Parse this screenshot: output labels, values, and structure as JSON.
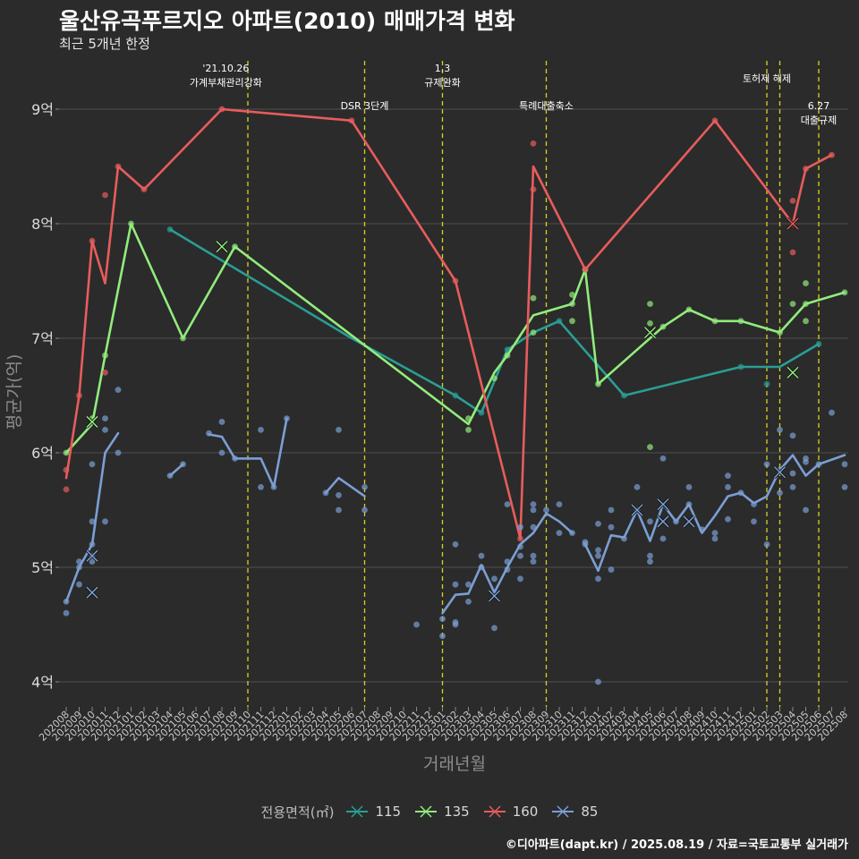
{
  "title": "울산유곡푸르지오 아파트(2010) 매매가격 변화",
  "subtitle": "최근 5개년 한정",
  "caption": "©디아파트(dapt.kr) / 2025.08.19 / 자료=국토교통부 실거래가",
  "colors": {
    "background": "#2b2b2b",
    "grid": "#4f4f4f",
    "vline": "#d4d423",
    "text": "#ffffff",
    "axis_text": "#c8c8c8"
  },
  "chart_data": {
    "type": "line",
    "xlabel": "거래년월",
    "ylabel": "평균가(억)",
    "ylim": [
      3.8,
      9.6
    ],
    "yticks": [
      {
        "value": 4,
        "label": "4억"
      },
      {
        "value": 5,
        "label": "5억"
      },
      {
        "value": 6,
        "label": "6억"
      },
      {
        "value": 7,
        "label": "7억"
      },
      {
        "value": 8,
        "label": "8억"
      },
      {
        "value": 9,
        "label": "9억"
      }
    ],
    "categories": [
      "202008",
      "202009",
      "202010",
      "202011",
      "202012",
      "202101",
      "202102",
      "202103",
      "202104",
      "202105",
      "202106",
      "202107",
      "202108",
      "202109",
      "202110",
      "202111",
      "202112",
      "202201",
      "202202",
      "202203",
      "202204",
      "202205",
      "202206",
      "202207",
      "202208",
      "202209",
      "202210",
      "202211",
      "202212",
      "202301",
      "202302",
      "202303",
      "202304",
      "202305",
      "202306",
      "202307",
      "202308",
      "202309",
      "202310",
      "202311",
      "202312",
      "202401",
      "202402",
      "202403",
      "202404",
      "202405",
      "202406",
      "202407",
      "202408",
      "202409",
      "202410",
      "202411",
      "202412",
      "202501",
      "202502",
      "202503",
      "202504",
      "202505",
      "202506",
      "202507",
      "202508"
    ],
    "legend_title": "전용면적(㎡)",
    "events": [
      {
        "x": 14.0,
        "label_lines": [
          "'21.10.26",
          "가계부채관리강화"
        ],
        "label_x": 12.3,
        "label_y": 9.33
      },
      {
        "x": 23.0,
        "label_lines": [
          "DSR 3단계"
        ],
        "label_x": 23.0,
        "label_y": 9.0
      },
      {
        "x": 29.0,
        "label_lines": [
          "1.3",
          "규제완화"
        ],
        "label_x": 29.0,
        "label_y": 9.33
      },
      {
        "x": 37.0,
        "label_lines": [
          "특례대출축소"
        ],
        "label_x": 37.0,
        "label_y": 9.0
      },
      {
        "x": 54.0,
        "label_lines": [
          "토허제 해제"
        ],
        "label_x": 54.0,
        "label_y": 9.24
      },
      {
        "x": 55.0,
        "label_lines": [],
        "label_x": 55.0,
        "label_y": 9.24
      },
      {
        "x": 58.0,
        "label_lines": [
          "6.27",
          "대출규제"
        ],
        "label_x": 58.0,
        "label_y": 9.0
      }
    ],
    "series": [
      {
        "name": "115",
        "color": "#2a9d94",
        "line": [
          [
            8,
            7.95
          ],
          [
            22,
            7.0
          ],
          [
            30,
            6.5
          ],
          [
            32,
            6.35
          ],
          [
            34,
            6.9
          ],
          [
            36,
            7.05
          ],
          [
            38,
            7.15
          ],
          [
            43,
            6.5
          ],
          [
            52,
            6.75
          ],
          [
            55,
            6.75
          ],
          [
            58,
            6.95
          ]
        ],
        "points": [
          [
            8,
            7.95
          ],
          [
            30,
            6.5
          ],
          [
            32,
            6.35
          ],
          [
            34,
            6.9
          ],
          [
            38,
            7.15
          ],
          [
            43,
            6.5
          ],
          [
            52,
            6.75
          ],
          [
            54,
            6.6
          ],
          [
            58,
            6.95
          ]
        ],
        "crosses": []
      },
      {
        "name": "135",
        "color": "#92ec7c",
        "line": [
          [
            0,
            6.0
          ],
          [
            2,
            6.25
          ],
          [
            3,
            6.85
          ],
          [
            5,
            8.0
          ],
          [
            9,
            7.0
          ],
          [
            13,
            7.8
          ],
          [
            31,
            6.25
          ],
          [
            33,
            6.7
          ],
          [
            34,
            6.85
          ],
          [
            36,
            7.2
          ],
          [
            39,
            7.3
          ],
          [
            40,
            7.6
          ],
          [
            41,
            6.6
          ],
          [
            46,
            7.1
          ],
          [
            48,
            7.25
          ],
          [
            50,
            7.15
          ],
          [
            52,
            7.15
          ],
          [
            55,
            7.05
          ],
          [
            57,
            7.3
          ],
          [
            60,
            7.4
          ]
        ],
        "points": [
          [
            0,
            6.0
          ],
          [
            2,
            6.3
          ],
          [
            3,
            6.85
          ],
          [
            5,
            8.0
          ],
          [
            9,
            7.0
          ],
          [
            13,
            7.8
          ],
          [
            31,
            6.3
          ],
          [
            31,
            6.2
          ],
          [
            33,
            6.65
          ],
          [
            34,
            6.85
          ],
          [
            36,
            7.05
          ],
          [
            36,
            7.35
          ],
          [
            39,
            7.3
          ],
          [
            39,
            7.38
          ],
          [
            39,
            7.15
          ],
          [
            40,
            7.6
          ],
          [
            41,
            6.6
          ],
          [
            45,
            7.3
          ],
          [
            45,
            7.13
          ],
          [
            45,
            6.05
          ],
          [
            46,
            7.1
          ],
          [
            48,
            7.25
          ],
          [
            50,
            7.15
          ],
          [
            52,
            7.15
          ],
          [
            55,
            7.05
          ],
          [
            56,
            7.3
          ],
          [
            57,
            7.48
          ],
          [
            57,
            7.15
          ],
          [
            57,
            7.3
          ],
          [
            60,
            7.4
          ]
        ],
        "crosses": [
          [
            2,
            6.27
          ],
          [
            12,
            7.8
          ],
          [
            45,
            7.05
          ],
          [
            56,
            6.7
          ]
        ]
      },
      {
        "name": "160",
        "color": "#e85c5c",
        "line": [
          [
            0,
            5.78
          ],
          [
            1,
            6.5
          ],
          [
            2,
            7.85
          ],
          [
            3,
            7.48
          ],
          [
            4,
            8.5
          ],
          [
            6,
            8.3
          ],
          [
            12,
            9.0
          ],
          [
            22,
            8.9
          ],
          [
            30,
            7.5
          ],
          [
            35,
            5.25
          ],
          [
            36,
            8.5
          ],
          [
            40,
            7.6
          ],
          [
            50,
            8.9
          ],
          [
            56,
            8.0
          ],
          [
            57,
            8.48
          ],
          [
            59,
            8.6
          ]
        ],
        "points": [
          [
            0,
            5.85
          ],
          [
            0,
            5.68
          ],
          [
            1,
            6.5
          ],
          [
            2,
            7.85
          ],
          [
            3,
            8.25
          ],
          [
            3,
            6.7
          ],
          [
            4,
            8.5
          ],
          [
            6,
            8.3
          ],
          [
            12,
            9.0
          ],
          [
            22,
            8.9
          ],
          [
            30,
            7.5
          ],
          [
            35,
            5.25
          ],
          [
            36,
            8.7
          ],
          [
            36,
            8.3
          ],
          [
            40,
            7.6
          ],
          [
            50,
            8.9
          ],
          [
            56,
            8.2
          ],
          [
            56,
            8.0
          ],
          [
            56,
            7.75
          ],
          [
            57,
            8.48
          ],
          [
            59,
            8.6
          ]
        ],
        "crosses": [
          [
            56,
            8.0
          ]
        ]
      },
      {
        "name": "85",
        "color": "#7b9fd4",
        "line_segments": [
          [
            [
              0,
              4.7
            ],
            [
              1,
              5.0
            ],
            [
              2,
              5.2
            ],
            [
              3,
              6.0
            ],
            [
              4,
              6.17
            ]
          ],
          [
            [
              8,
              5.8
            ],
            [
              9,
              5.9
            ]
          ],
          [
            [
              11,
              6.16
            ],
            [
              12,
              6.14
            ],
            [
              13,
              5.95
            ],
            [
              15,
              5.95
            ],
            [
              16,
              5.7
            ],
            [
              17,
              6.3
            ]
          ],
          [
            [
              20,
              5.65
            ],
            [
              21,
              5.78
            ],
            [
              23,
              5.62
            ]
          ],
          [
            [
              29,
              4.6
            ],
            [
              30,
              4.76
            ],
            [
              31,
              4.77
            ],
            [
              32,
              5.02
            ],
            [
              33,
              4.78
            ],
            [
              34,
              5.0
            ],
            [
              35,
              5.2
            ],
            [
              36,
              5.3
            ],
            [
              37,
              5.47
            ],
            [
              38,
              5.4
            ],
            [
              39,
              5.3
            ]
          ],
          [
            [
              40,
              5.2
            ],
            [
              41,
              4.97
            ],
            [
              42,
              5.28
            ],
            [
              43,
              5.26
            ],
            [
              44,
              5.5
            ],
            [
              45,
              5.23
            ],
            [
              46,
              5.55
            ],
            [
              47,
              5.4
            ],
            [
              48,
              5.55
            ],
            [
              49,
              5.3
            ],
            [
              50,
              5.45
            ],
            [
              51,
              5.62
            ],
            [
              52,
              5.65
            ],
            [
              53,
              5.56
            ],
            [
              54,
              5.62
            ],
            [
              55,
              5.85
            ],
            [
              56,
              5.98
            ],
            [
              57,
              5.8
            ],
            [
              58,
              5.9
            ],
            [
              60,
              5.98
            ]
          ]
        ],
        "points": [
          [
            0,
            4.6
          ],
          [
            0,
            4.7
          ],
          [
            1,
            4.85
          ],
          [
            1,
            5.0
          ],
          [
            1,
            5.05
          ],
          [
            2,
            5.1
          ],
          [
            2,
            5.05
          ],
          [
            2,
            5.2
          ],
          [
            2,
            5.4
          ],
          [
            2,
            5.9
          ],
          [
            3,
            6.3
          ],
          [
            3,
            6.2
          ],
          [
            3,
            5.4
          ],
          [
            4,
            6.55
          ],
          [
            4,
            6.0
          ],
          [
            8,
            5.8
          ],
          [
            9,
            5.9
          ],
          [
            11,
            6.17
          ],
          [
            12,
            6.27
          ],
          [
            12,
            6.0
          ],
          [
            13,
            5.95
          ],
          [
            15,
            6.2
          ],
          [
            15,
            5.7
          ],
          [
            16,
            5.7
          ],
          [
            17,
            6.3
          ],
          [
            20,
            5.65
          ],
          [
            21,
            6.2
          ],
          [
            21,
            5.63
          ],
          [
            21,
            5.5
          ],
          [
            23,
            5.7
          ],
          [
            23,
            5.5
          ],
          [
            27,
            4.5
          ],
          [
            29,
            4.55
          ],
          [
            29,
            4.4
          ],
          [
            30,
            4.85
          ],
          [
            30,
            4.5
          ],
          [
            30,
            4.52
          ],
          [
            30,
            5.2
          ],
          [
            31,
            4.85
          ],
          [
            31,
            4.7
          ],
          [
            32,
            5.1
          ],
          [
            32,
            5.0
          ],
          [
            33,
            4.9
          ],
          [
            33,
            4.47
          ],
          [
            34,
            4.98
          ],
          [
            34,
            5.05
          ],
          [
            34,
            5.55
          ],
          [
            35,
            5.35
          ],
          [
            35,
            5.18
          ],
          [
            35,
            5.1
          ],
          [
            35,
            4.9
          ],
          [
            36,
            5.55
          ],
          [
            36,
            5.5
          ],
          [
            36,
            5.35
          ],
          [
            36,
            5.1
          ],
          [
            36,
            5.05
          ],
          [
            37,
            5.5
          ],
          [
            38,
            5.55
          ],
          [
            38,
            5.3
          ],
          [
            39,
            5.3
          ],
          [
            40,
            5.2
          ],
          [
            40,
            5.22
          ],
          [
            41,
            5.38
          ],
          [
            41,
            5.15
          ],
          [
            41,
            5.1
          ],
          [
            41,
            4.9
          ],
          [
            41,
            4.0
          ],
          [
            42,
            5.5
          ],
          [
            42,
            5.35
          ],
          [
            42,
            4.98
          ],
          [
            43,
            5.25
          ],
          [
            44,
            5.7
          ],
          [
            44,
            5.5
          ],
          [
            45,
            5.4
          ],
          [
            45,
            5.05
          ],
          [
            45,
            5.1
          ],
          [
            46,
            5.95
          ],
          [
            46,
            5.25
          ],
          [
            47,
            5.4
          ],
          [
            48,
            5.7
          ],
          [
            48,
            5.55
          ],
          [
            49,
            5.33
          ],
          [
            50,
            5.3
          ],
          [
            50,
            5.25
          ],
          [
            51,
            5.8
          ],
          [
            51,
            5.7
          ],
          [
            51,
            5.42
          ],
          [
            52,
            5.65
          ],
          [
            53,
            5.55
          ],
          [
            53,
            5.4
          ],
          [
            54,
            5.2
          ],
          [
            54,
            5.9
          ],
          [
            55,
            5.65
          ],
          [
            55,
            5.85
          ],
          [
            55,
            6.2
          ],
          [
            56,
            6.15
          ],
          [
            56,
            5.82
          ],
          [
            56,
            5.7
          ],
          [
            57,
            5.95
          ],
          [
            57,
            5.92
          ],
          [
            57,
            5.5
          ],
          [
            58,
            5.9
          ],
          [
            59,
            6.35
          ],
          [
            60,
            5.9
          ],
          [
            60,
            5.7
          ]
        ],
        "crosses": [
          [
            2,
            5.1
          ],
          [
            2,
            4.78
          ],
          [
            33,
            4.75
          ],
          [
            44,
            5.5
          ],
          [
            46,
            5.4
          ],
          [
            46,
            5.55
          ],
          [
            48,
            5.4
          ],
          [
            55,
            5.83
          ]
        ]
      }
    ]
  }
}
